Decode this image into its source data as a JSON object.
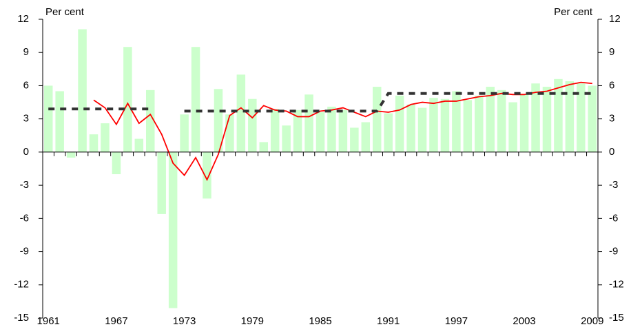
{
  "chart_data": {
    "type": "combo",
    "y_label": "Per cent",
    "y2_label": "Per cent",
    "categories": [
      "1961",
      null,
      null,
      null,
      null,
      null,
      "1967",
      null,
      null,
      null,
      null,
      null,
      "1973",
      null,
      null,
      null,
      null,
      null,
      "1979",
      null,
      null,
      null,
      null,
      null,
      "1985",
      null,
      null,
      null,
      null,
      null,
      "1991",
      null,
      null,
      null,
      null,
      null,
      "1997",
      null,
      null,
      null,
      null,
      null,
      "2003",
      null,
      null,
      null,
      null,
      null,
      "2009"
    ],
    "series": [
      {
        "type": "bar",
        "color": "#ccffcc",
        "values": [
          6.0,
          5.5,
          -0.5,
          11.1,
          1.6,
          2.6,
          -2.0,
          9.5,
          1.2,
          5.6,
          -5.6,
          -14.1,
          3.4,
          9.5,
          -4.2,
          5.7,
          3.4,
          7.0,
          4.8,
          0.9,
          3.9,
          2.4,
          3.8,
          5.2,
          3.6,
          4.1,
          3.8,
          2.2,
          2.7,
          5.9,
          3.5,
          5.1,
          4.3,
          4.0,
          4.9,
          4.8,
          5.5,
          4.7,
          5.1,
          5.9,
          5.6,
          4.5,
          5.2,
          6.2,
          5.9,
          6.6,
          6.4,
          6.2,
          6.0
        ]
      },
      {
        "type": "line",
        "color": "#ff0000",
        "values": [
          null,
          null,
          null,
          null,
          4.7,
          4.0,
          2.5,
          4.4,
          2.6,
          3.4,
          1.6,
          -1.0,
          -2.1,
          -0.5,
          -2.5,
          -0.2,
          3.3,
          4.0,
          3.1,
          4.2,
          3.8,
          3.7,
          3.2,
          3.2,
          3.7,
          3.8,
          4.0,
          3.6,
          3.2,
          3.7,
          3.6,
          3.8,
          4.3,
          4.5,
          4.4,
          4.6,
          4.6,
          4.8,
          5.0,
          5.1,
          5.3,
          5.2,
          5.2,
          5.4,
          5.5,
          5.8,
          6.1,
          6.3,
          6.2
        ]
      },
      {
        "type": "dashed",
        "color": "#333333",
        "values": [
          3.9,
          3.9,
          3.9,
          3.9,
          3.9,
          3.9,
          3.9,
          3.9,
          3.9,
          3.9,
          null,
          null,
          3.7,
          3.7,
          3.7,
          3.7,
          3.7,
          3.7,
          3.7,
          3.7,
          3.7,
          3.7,
          3.7,
          3.7,
          3.7,
          3.7,
          3.7,
          3.7,
          3.7,
          3.7,
          5.3,
          5.3,
          5.3,
          5.3,
          5.3,
          5.3,
          5.3,
          5.3,
          5.3,
          5.3,
          5.3,
          5.3,
          5.3,
          5.3,
          5.3,
          5.3,
          5.3,
          5.3,
          5.3
        ]
      }
    ],
    "ylim": [
      -15,
      12
    ],
    "yticks": [
      -15,
      -12,
      -9,
      -6,
      -3,
      0,
      3,
      6,
      9,
      12
    ],
    "y2lim": [
      -15,
      12
    ],
    "y2ticks": [
      -15,
      -12,
      -9,
      -6,
      -3,
      0,
      3,
      6,
      9,
      12
    ]
  }
}
